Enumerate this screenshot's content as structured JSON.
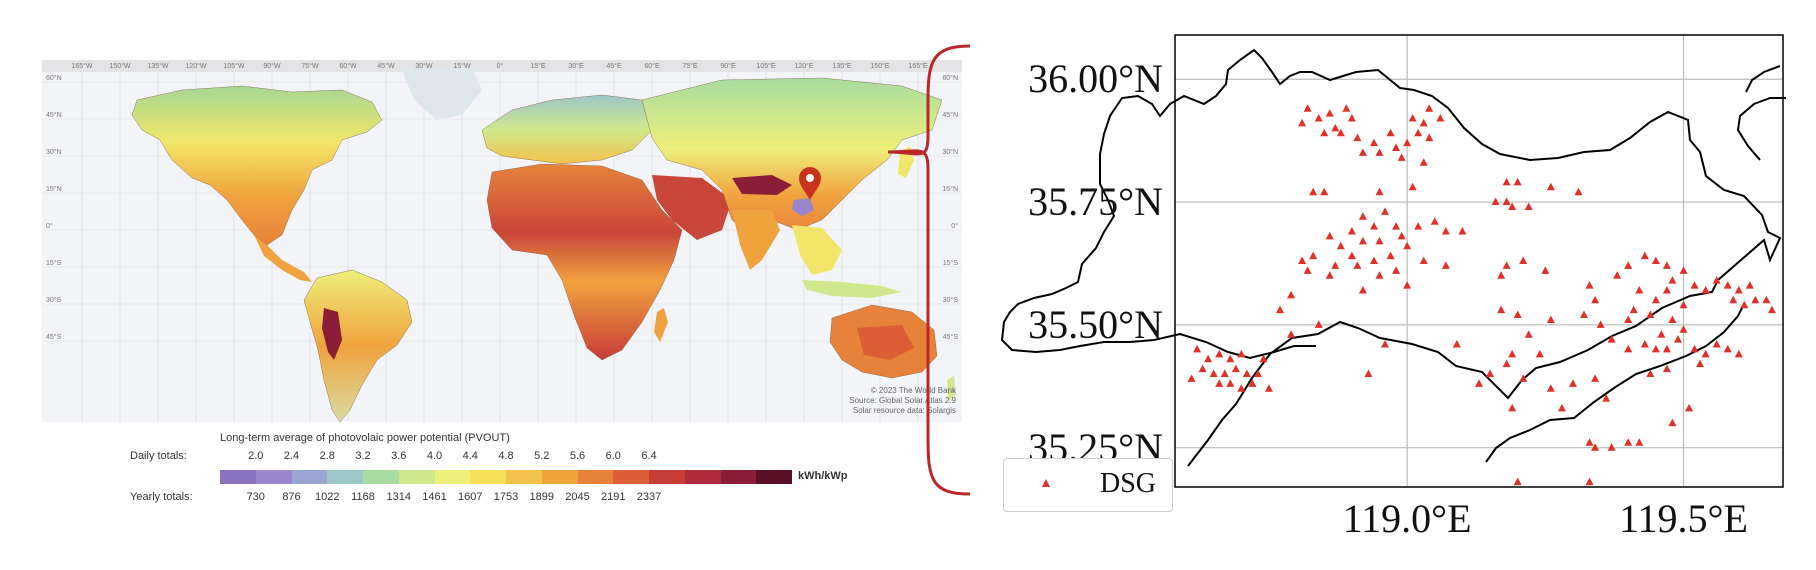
{
  "left_map": {
    "lon_ticks": [
      "165°W",
      "150°W",
      "135°W",
      "120°W",
      "105°W",
      "90°W",
      "75°W",
      "60°W",
      "45°W",
      "30°W",
      "15°W",
      "0°",
      "15°E",
      "30°E",
      "45°E",
      "60°E",
      "75°E",
      "90°E",
      "105°E",
      "120°E",
      "135°E",
      "150°E",
      "165°E"
    ],
    "lat_ticks": [
      "60°N",
      "45°N",
      "30°N",
      "15°N",
      "0°",
      "15°S",
      "30°S",
      "45°S"
    ],
    "credits": [
      "© 2023 The World Bank",
      "Source: Global Solar Atlas 2.9",
      "Solar resource data: Solargis"
    ],
    "pin_icon": "location-pin-icon",
    "pin_color": "#c8321e"
  },
  "legend": {
    "title": "Long-term average of photovolaic power potential (PVOUT)",
    "daily_label": "Daily totals:",
    "yearly_label": "Yearly totals:",
    "daily_values": [
      "2.0",
      "2.4",
      "2.8",
      "3.2",
      "3.6",
      "4.0",
      "4.4",
      "4.8",
      "5.2",
      "5.6",
      "6.0",
      "6.4"
    ],
    "yearly_values": [
      "730",
      "876",
      "1022",
      "1168",
      "1314",
      "1461",
      "1607",
      "1753",
      "1899",
      "2045",
      "2191",
      "2337"
    ],
    "unit": "kWh/kWp",
    "colors": [
      "#8a72c0",
      "#9a86cc",
      "#9aa6d2",
      "#9cc6c8",
      "#a8dca0",
      "#cfe88c",
      "#eef07a",
      "#f6e05a",
      "#f4c24a",
      "#f0a23e",
      "#e8823a",
      "#dc5e36",
      "#c83c38",
      "#ac2c3c",
      "#8a1e38",
      "#5c1028"
    ]
  },
  "brace_color": "#b8282a",
  "chart_data": {
    "type": "scatter",
    "xlim": [
      118.58,
      119.68
    ],
    "ylim": [
      35.17,
      36.09
    ],
    "xticks": [
      119.0,
      119.5
    ],
    "xtick_labels": [
      "119.0°E",
      "119.5°E"
    ],
    "yticks": [
      36.0,
      35.75,
      35.5,
      35.25
    ],
    "ytick_labels": [
      "36.00°N",
      "35.75°N",
      "35.50°N",
      "35.25°N"
    ],
    "grid": true,
    "legend_position": "bottom-left",
    "series": [
      {
        "name": "DSG",
        "color": "#e0302a",
        "marker": "triangle",
        "points": [
          [
            118.82,
            35.94
          ],
          [
            118.86,
            35.93
          ],
          [
            118.89,
            35.94
          ],
          [
            118.84,
            35.92
          ],
          [
            118.87,
            35.9
          ],
          [
            118.9,
            35.92
          ],
          [
            118.81,
            35.91
          ],
          [
            118.85,
            35.89
          ],
          [
            118.88,
            35.89
          ],
          [
            118.91,
            35.88
          ],
          [
            118.94,
            35.87
          ],
          [
            118.92,
            35.85
          ],
          [
            118.95,
            35.85
          ],
          [
            118.98,
            35.86
          ],
          [
            119.0,
            35.87
          ],
          [
            119.02,
            35.89
          ],
          [
            119.04,
            35.88
          ],
          [
            119.03,
            35.91
          ],
          [
            119.01,
            35.92
          ],
          [
            119.06,
            35.92
          ],
          [
            119.04,
            35.94
          ],
          [
            118.97,
            35.89
          ],
          [
            118.99,
            35.84
          ],
          [
            119.03,
            35.83
          ],
          [
            118.83,
            35.77
          ],
          [
            118.85,
            35.77
          ],
          [
            118.95,
            35.77
          ],
          [
            119.01,
            35.78
          ],
          [
            119.18,
            35.79
          ],
          [
            119.2,
            35.79
          ],
          [
            119.26,
            35.78
          ],
          [
            119.31,
            35.77
          ],
          [
            119.16,
            35.75
          ],
          [
            119.18,
            35.75
          ],
          [
            119.19,
            35.74
          ],
          [
            119.22,
            35.74
          ],
          [
            118.92,
            35.72
          ],
          [
            118.96,
            35.73
          ],
          [
            118.98,
            35.7
          ],
          [
            118.94,
            35.7
          ],
          [
            118.9,
            35.69
          ],
          [
            118.86,
            35.68
          ],
          [
            118.88,
            35.66
          ],
          [
            118.92,
            35.67
          ],
          [
            118.95,
            35.67
          ],
          [
            118.99,
            35.68
          ],
          [
            119.02,
            35.7
          ],
          [
            119.05,
            35.71
          ],
          [
            119.07,
            35.69
          ],
          [
            119.1,
            35.69
          ],
          [
            119.0,
            35.66
          ],
          [
            118.97,
            35.64
          ],
          [
            118.94,
            35.63
          ],
          [
            118.91,
            35.62
          ],
          [
            118.87,
            35.62
          ],
          [
            118.83,
            35.64
          ],
          [
            118.81,
            35.63
          ],
          [
            118.82,
            35.61
          ],
          [
            118.86,
            35.6
          ],
          [
            118.9,
            35.64
          ],
          [
            118.95,
            35.6
          ],
          [
            118.98,
            35.61
          ],
          [
            119.03,
            35.63
          ],
          [
            119.0,
            35.58
          ],
          [
            119.07,
            35.62
          ],
          [
            118.92,
            35.57
          ],
          [
            118.79,
            35.56
          ],
          [
            118.77,
            35.53
          ],
          [
            118.84,
            35.5
          ],
          [
            119.18,
            35.62
          ],
          [
            119.17,
            35.6
          ],
          [
            119.21,
            35.63
          ],
          [
            119.25,
            35.61
          ],
          [
            119.33,
            35.58
          ],
          [
            119.34,
            35.55
          ],
          [
            119.38,
            35.6
          ],
          [
            119.4,
            35.62
          ],
          [
            119.43,
            35.64
          ],
          [
            119.45,
            35.63
          ],
          [
            119.47,
            35.62
          ],
          [
            119.5,
            35.61
          ],
          [
            119.48,
            35.59
          ],
          [
            119.52,
            35.58
          ],
          [
            119.54,
            35.57
          ],
          [
            119.56,
            35.59
          ],
          [
            119.58,
            35.58
          ],
          [
            119.6,
            35.57
          ],
          [
            119.62,
            35.58
          ],
          [
            119.59,
            35.55
          ],
          [
            119.61,
            35.54
          ],
          [
            119.63,
            35.55
          ],
          [
            119.66,
            35.53
          ],
          [
            119.65,
            35.55
          ],
          [
            119.47,
            35.57
          ],
          [
            119.42,
            35.57
          ],
          [
            119.45,
            35.55
          ],
          [
            119.5,
            35.54
          ],
          [
            119.44,
            35.52
          ],
          [
            119.41,
            35.53
          ],
          [
            119.4,
            35.51
          ],
          [
            119.48,
            35.51
          ],
          [
            119.5,
            35.49
          ],
          [
            119.46,
            35.48
          ],
          [
            119.43,
            35.46
          ],
          [
            119.45,
            35.45
          ],
          [
            119.47,
            35.45
          ],
          [
            119.49,
            35.47
          ],
          [
            119.52,
            35.45
          ],
          [
            119.54,
            35.44
          ],
          [
            119.56,
            35.46
          ],
          [
            119.58,
            35.45
          ],
          [
            119.6,
            35.44
          ],
          [
            119.53,
            35.42
          ],
          [
            119.47,
            35.41
          ],
          [
            119.44,
            35.4
          ],
          [
            119.4,
            35.45
          ],
          [
            119.37,
            35.47
          ],
          [
            119.35,
            35.5
          ],
          [
            119.17,
            35.53
          ],
          [
            119.2,
            35.52
          ],
          [
            119.26,
            35.51
          ],
          [
            119.32,
            35.52
          ],
          [
            119.22,
            35.48
          ],
          [
            119.24,
            35.44
          ],
          [
            119.19,
            35.44
          ],
          [
            119.18,
            35.42
          ],
          [
            119.15,
            35.4
          ],
          [
            119.13,
            35.38
          ],
          [
            119.21,
            35.39
          ],
          [
            119.26,
            35.37
          ],
          [
            119.28,
            35.33
          ],
          [
            119.34,
            35.39
          ],
          [
            119.36,
            35.35
          ],
          [
            119.3,
            35.38
          ],
          [
            119.19,
            35.33
          ],
          [
            119.33,
            35.26
          ],
          [
            119.34,
            35.25
          ],
          [
            119.37,
            35.25
          ],
          [
            119.4,
            35.26
          ],
          [
            119.42,
            35.26
          ],
          [
            119.51,
            35.33
          ],
          [
            119.48,
            35.3
          ],
          [
            119.2,
            35.18
          ],
          [
            119.33,
            35.18
          ],
          [
            119.09,
            35.46
          ],
          [
            118.93,
            35.4
          ],
          [
            118.96,
            35.46
          ],
          [
            118.79,
            35.48
          ],
          [
            118.63,
            35.41
          ],
          [
            118.65,
            35.4
          ],
          [
            118.67,
            35.4
          ],
          [
            118.69,
            35.41
          ],
          [
            118.71,
            35.4
          ],
          [
            118.68,
            35.38
          ],
          [
            118.7,
            35.37
          ],
          [
            118.66,
            35.38
          ],
          [
            118.73,
            35.4
          ],
          [
            118.72,
            35.38
          ],
          [
            118.75,
            35.37
          ],
          [
            118.61,
            35.39
          ],
          [
            118.64,
            35.43
          ],
          [
            118.68,
            35.43
          ],
          [
            118.66,
            35.44
          ],
          [
            118.62,
            35.45
          ],
          [
            118.7,
            35.44
          ],
          [
            118.74,
            35.43
          ]
        ]
      }
    ]
  }
}
